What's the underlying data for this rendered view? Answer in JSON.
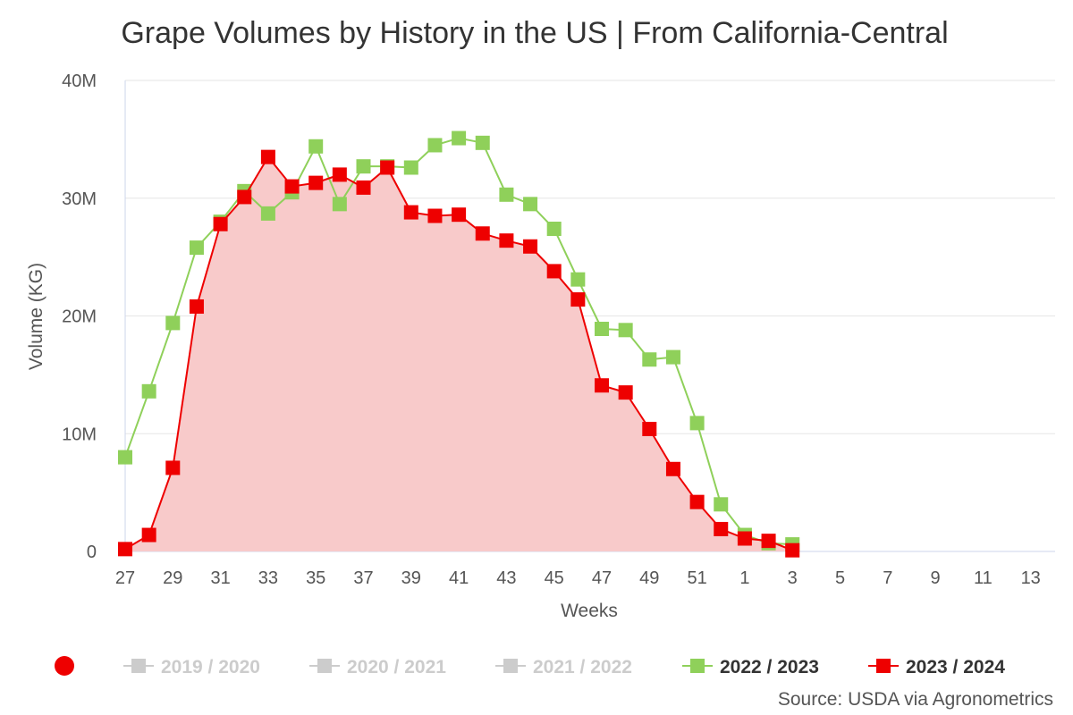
{
  "chart_data": {
    "type": "line",
    "title": "Grape Volumes by History in the US | From California-Central",
    "xlabel": "Weeks",
    "ylabel": "Volume (KG)",
    "x_categories": [
      "27",
      "28",
      "29",
      "30",
      "31",
      "32",
      "33",
      "34",
      "35",
      "36",
      "37",
      "38",
      "39",
      "40",
      "41",
      "42",
      "43",
      "44",
      "45",
      "46",
      "47",
      "48",
      "49",
      "50",
      "51",
      "52",
      "1",
      "2",
      "3",
      "4",
      "5",
      "6",
      "7",
      "8",
      "9",
      "10",
      "11",
      "12",
      "13"
    ],
    "x_tick_labels": [
      "27",
      "29",
      "31",
      "33",
      "35",
      "37",
      "39",
      "41",
      "43",
      "45",
      "47",
      "49",
      "51",
      "1",
      "3",
      "5",
      "7",
      "9",
      "11",
      "13"
    ],
    "ylim": [
      0,
      40000000
    ],
    "y_tick_labels": [
      "0",
      "10M",
      "20M",
      "30M",
      "40M"
    ],
    "grid": "horizontal",
    "legend_position": "bottom",
    "series": [
      {
        "name": "2019 / 2020",
        "color": "#cccccc",
        "visible": false,
        "values": []
      },
      {
        "name": "2020 / 2021",
        "color": "#cccccc",
        "visible": false,
        "values": []
      },
      {
        "name": "2021 / 2022",
        "color": "#cccccc",
        "visible": false,
        "values": []
      },
      {
        "name": "2022 / 2023",
        "color": "#8fd05a",
        "visible": true,
        "filled": false,
        "values": [
          8000000,
          13600000,
          19400000,
          25800000,
          28000000,
          30600000,
          28700000,
          30500000,
          34400000,
          29500000,
          32700000,
          32700000,
          32600000,
          34500000,
          35100000,
          34700000,
          30300000,
          29500000,
          27400000,
          23100000,
          18900000,
          18800000,
          16300000,
          16500000,
          10900000,
          4000000,
          1400000,
          700000,
          600000
        ]
      },
      {
        "name": "2023 / 2024",
        "color": "#ee0000",
        "visible": true,
        "filled": true,
        "fill_color": "#f8caca",
        "values": [
          200000,
          1400000,
          7100000,
          20800000,
          27800000,
          30100000,
          33500000,
          31000000,
          31300000,
          32000000,
          30900000,
          32600000,
          28800000,
          28500000,
          28600000,
          27000000,
          26400000,
          25900000,
          23800000,
          21400000,
          14100000,
          13500000,
          10400000,
          7000000,
          4200000,
          1900000,
          1100000,
          900000,
          100000
        ]
      }
    ],
    "legend_marker_color": "#ee0000",
    "source": "Source: USDA via Agronometrics"
  }
}
